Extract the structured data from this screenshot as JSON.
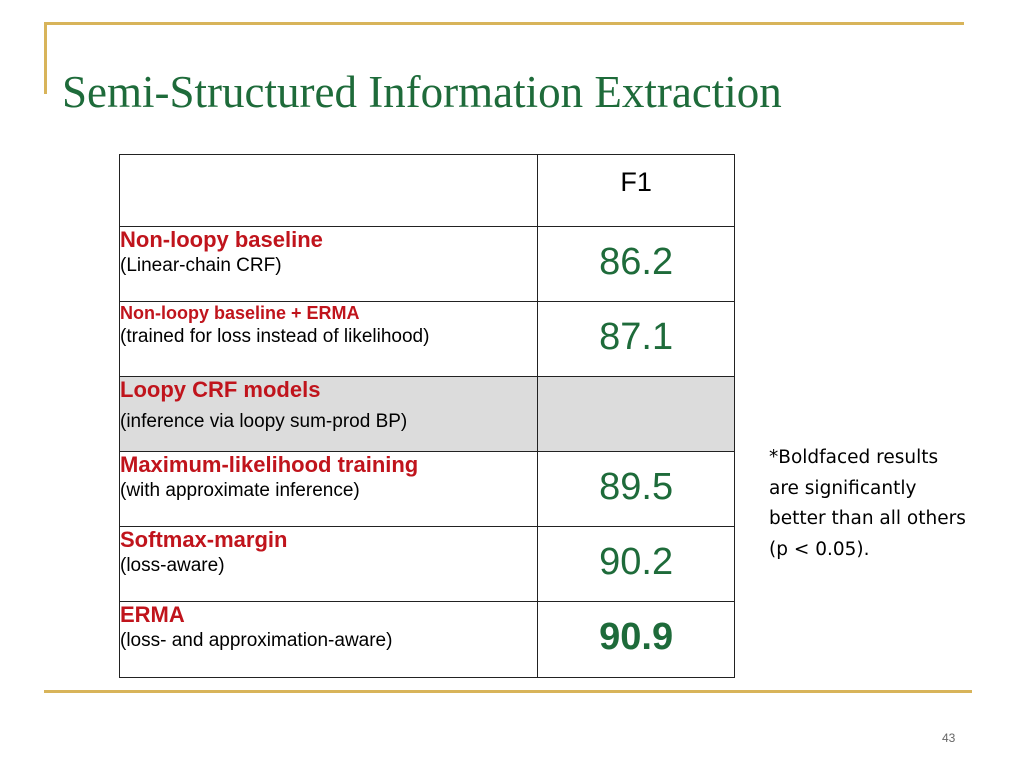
{
  "slide": {
    "title": "Semi-Structured Information Extraction",
    "page_number": "43"
  },
  "table": {
    "header": {
      "method": "",
      "score": "F1"
    },
    "rows": [
      {
        "method": "Non-loopy baseline",
        "note": "(Linear-chain CRF)",
        "score": "86.2"
      },
      {
        "method": "Non-loopy baseline + ERMA",
        "note": "(trained for loss instead of likelihood)",
        "score": "87.1"
      },
      {
        "method": "Loopy CRF models",
        "note": "(inference via loopy sum-prod BP)",
        "score": ""
      },
      {
        "method": "Maximum-likelihood training",
        "note": "(with approximate inference)",
        "score": "89.5"
      },
      {
        "method": "Softmax-margin",
        "note": "(loss-aware)",
        "score": "90.2"
      },
      {
        "method": "ERMA",
        "note": "(loss- and approximation-aware)",
        "score": "90.9"
      }
    ]
  },
  "footnote": "*Boldfaced results are significantly better than all others (p < 0.05).",
  "colors": {
    "title": "#1e6b3a",
    "method_name": "#c0141c",
    "score": "#1e6b3a",
    "rule": "#d8b45a",
    "shaded_row": "#dcdcdc"
  }
}
